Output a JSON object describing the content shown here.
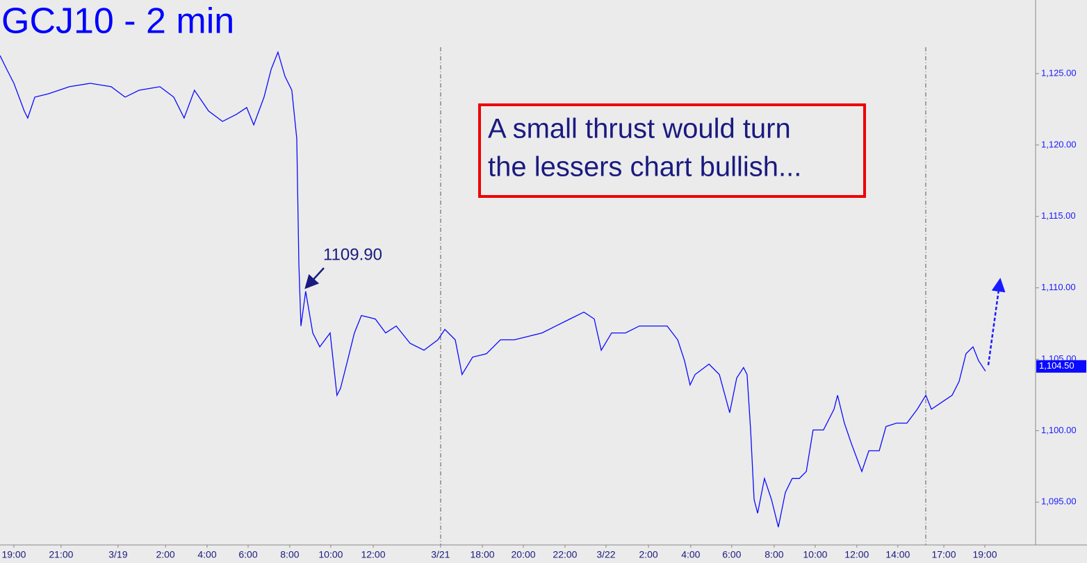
{
  "chart_data": {
    "type": "line",
    "title": "GCJ10 - 2 min",
    "color": "#0a0aff",
    "x": [
      -0.67,
      -0.34,
      0,
      0.5,
      0.67,
      1.01,
      1.68,
      2.68,
      3.69,
      4.7,
      5.37,
      6.04,
      7.05,
      7.72,
      8.22,
      8.72,
      9.4,
      10.07,
      10.74,
      11.24,
      11.58,
      12.08,
      12.42,
      12.75,
      13.09,
      13.42,
      13.66,
      13.76,
      13.86,
      14.09,
      14.43,
      14.77,
      15.27,
      15.6,
      15.77,
      16.11,
      16.44,
      16.78,
      17.45,
      17.95,
      18.46,
      19.13,
      19.8,
      20.47,
      20.81,
      21.31,
      21.64,
      22.15,
      22.82,
      23.49,
      24.16,
      24.83,
      25.5,
      26.17,
      26.85,
      27.52,
      28.02,
      28.36,
      28.86,
      29.53,
      30.2,
      30.87,
      31.54,
      32.05,
      32.38,
      32.65,
      32.89,
      33.56,
      34.06,
      34.56,
      34.9,
      35.23,
      35.4,
      35.57,
      35.74,
      35.91,
      36.24,
      36.58,
      36.91,
      37.25,
      37.58,
      37.92,
      38.26,
      38.59,
      39.09,
      39.6,
      39.77,
      40.1,
      40.44,
      40.94,
      41.28,
      41.78,
      42.11,
      42.62,
      43.12,
      43.62,
      44.03,
      44.3,
      44.8,
      45.3,
      45.64,
      45.97,
      46.31,
      46.58,
      46.91
    ],
    "values": [
      1126.26,
      1125.29,
      1124.32,
      1122.38,
      1121.89,
      1123.35,
      1123.59,
      1124.08,
      1124.32,
      1124.08,
      1123.35,
      1123.83,
      1124.08,
      1123.35,
      1121.89,
      1123.83,
      1122.38,
      1121.65,
      1122.14,
      1122.62,
      1121.41,
      1123.35,
      1125.29,
      1126.5,
      1124.81,
      1123.83,
      1120.44,
      1111.7,
      1107.33,
      1109.76,
      1106.84,
      1105.87,
      1106.84,
      1102.48,
      1102.96,
      1104.9,
      1106.84,
      1108.06,
      1107.82,
      1106.84,
      1107.33,
      1106.12,
      1105.63,
      1106.36,
      1107.09,
      1106.36,
      1103.93,
      1105.15,
      1105.39,
      1106.36,
      1106.36,
      1106.6,
      1106.84,
      1107.33,
      1107.82,
      1108.3,
      1107.82,
      1105.63,
      1106.84,
      1106.84,
      1107.33,
      1107.33,
      1107.33,
      1106.36,
      1104.9,
      1103.2,
      1103.93,
      1104.66,
      1103.93,
      1101.26,
      1103.69,
      1104.42,
      1103.93,
      1100.05,
      1095.19,
      1094.22,
      1096.65,
      1095.19,
      1093.25,
      1095.68,
      1096.65,
      1096.65,
      1097.14,
      1100.05,
      1100.05,
      1101.5,
      1102.48,
      1100.53,
      1099.08,
      1097.14,
      1098.59,
      1098.59,
      1100.29,
      1100.53,
      1100.53,
      1101.5,
      1102.48,
      1101.5,
      1101.99,
      1102.48,
      1103.45,
      1105.39,
      1105.87,
      1104.9,
      1104.17
    ],
    "xlim": [
      -0.67,
      49.33
    ],
    "ylim": [
      1092,
      1130.15
    ],
    "xticks": [
      {
        "value": 0,
        "label": "19:00"
      },
      {
        "value": 2.28,
        "label": "21:00"
      },
      {
        "value": 5.03,
        "label": "3/19"
      },
      {
        "value": 7.32,
        "label": "2:00"
      },
      {
        "value": 9.33,
        "label": "4:00"
      },
      {
        "value": 11.31,
        "label": "6:00"
      },
      {
        "value": 13.32,
        "label": "8:00"
      },
      {
        "value": 15.3,
        "label": "10:00"
      },
      {
        "value": 17.35,
        "label": "12:00"
      },
      {
        "value": 20.6,
        "label": "3/21"
      },
      {
        "value": 22.62,
        "label": "18:00"
      },
      {
        "value": 24.6,
        "label": "20:00"
      },
      {
        "value": 26.61,
        "label": "22:00"
      },
      {
        "value": 28.59,
        "label": "3/22"
      },
      {
        "value": 30.64,
        "label": "2:00"
      },
      {
        "value": 32.68,
        "label": "4:00"
      },
      {
        "value": 34.66,
        "label": "6:00"
      },
      {
        "value": 36.71,
        "label": "8:00"
      },
      {
        "value": 38.69,
        "label": "10:00"
      },
      {
        "value": 40.7,
        "label": "12:00"
      },
      {
        "value": 42.68,
        "label": "14:00"
      },
      {
        "value": 44.9,
        "label": "17:00"
      },
      {
        "value": 46.88,
        "label": "19:00"
      }
    ],
    "yticks": [
      {
        "value": 1095,
        "label": "1,095.00"
      },
      {
        "value": 1100,
        "label": "1,100.00"
      },
      {
        "value": 1105,
        "label": "1,105.00"
      },
      {
        "value": 1110,
        "label": "1,110.00"
      },
      {
        "value": 1115,
        "label": "1,115.00"
      },
      {
        "value": 1120,
        "label": "1,120.00"
      },
      {
        "value": 1125,
        "label": "1,125.00"
      }
    ],
    "last_price": {
      "value": 1104.5,
      "label": "1,104.50"
    },
    "annotations": {
      "price_note": "1109.90",
      "callout": [
        "A small thrust would turn",
        "the lessers chart bullish..."
      ]
    }
  }
}
